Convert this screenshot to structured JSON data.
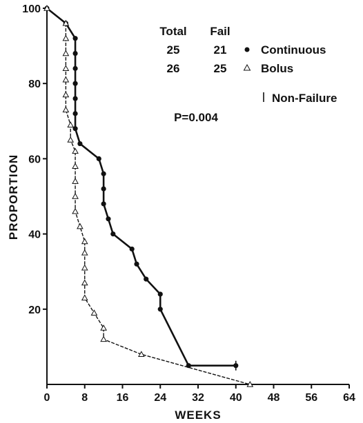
{
  "chart_data": {
    "type": "line",
    "xlabel": "WEEKS",
    "ylabel": "PROPORTION",
    "xlim": [
      0,
      64
    ],
    "ylim": [
      0,
      100
    ],
    "xticks": [
      "0",
      "8",
      "16",
      "24",
      "32",
      "40",
      "48",
      "56",
      "64"
    ],
    "yticks": [
      "20",
      "40",
      "60",
      "80",
      "100"
    ],
    "grid": false,
    "legend": {
      "header_total": "Total",
      "header_fail": "Fail",
      "rows": [
        {
          "total": "25",
          "fail": "21",
          "label": "Continuous"
        },
        {
          "total": "26",
          "fail": "25",
          "label": "Bolus"
        }
      ],
      "censor_label": "Non-Failure",
      "pvalue": "P=0.004"
    },
    "series": [
      {
        "name": "Continuous",
        "marker": "filled-circle",
        "steps": [
          [
            0,
            100
          ],
          [
            4,
            96
          ],
          [
            6,
            92
          ],
          [
            6,
            88
          ],
          [
            6,
            84
          ],
          [
            6,
            80
          ],
          [
            6,
            76
          ],
          [
            6,
            72
          ],
          [
            6,
            68
          ],
          [
            7,
            64
          ],
          [
            11,
            60
          ],
          [
            12,
            56
          ],
          [
            12,
            52
          ],
          [
            12,
            48
          ],
          [
            13,
            44
          ],
          [
            14,
            40
          ],
          [
            18,
            36
          ],
          [
            19,
            32
          ],
          [
            21,
            28
          ],
          [
            24,
            24
          ],
          [
            24,
            20
          ],
          [
            30,
            5
          ],
          [
            40,
            5
          ]
        ],
        "censored": [
          [
            40,
            5
          ]
        ]
      },
      {
        "name": "Bolus",
        "marker": "open-triangle",
        "steps": [
          [
            0,
            100
          ],
          [
            4,
            96
          ],
          [
            4,
            92
          ],
          [
            4,
            88
          ],
          [
            4,
            84
          ],
          [
            4,
            81
          ],
          [
            4,
            77
          ],
          [
            4,
            73
          ],
          [
            5,
            69
          ],
          [
            5,
            65
          ],
          [
            6,
            62
          ],
          [
            6,
            58
          ],
          [
            6,
            54
          ],
          [
            6,
            50
          ],
          [
            6,
            46
          ],
          [
            7,
            42
          ],
          [
            8,
            38
          ],
          [
            8,
            35
          ],
          [
            8,
            31
          ],
          [
            8,
            27
          ],
          [
            8,
            23
          ],
          [
            10,
            19
          ],
          [
            12,
            15
          ],
          [
            12,
            12
          ],
          [
            20,
            8
          ],
          [
            43,
            0
          ]
        ],
        "censored": []
      }
    ]
  }
}
